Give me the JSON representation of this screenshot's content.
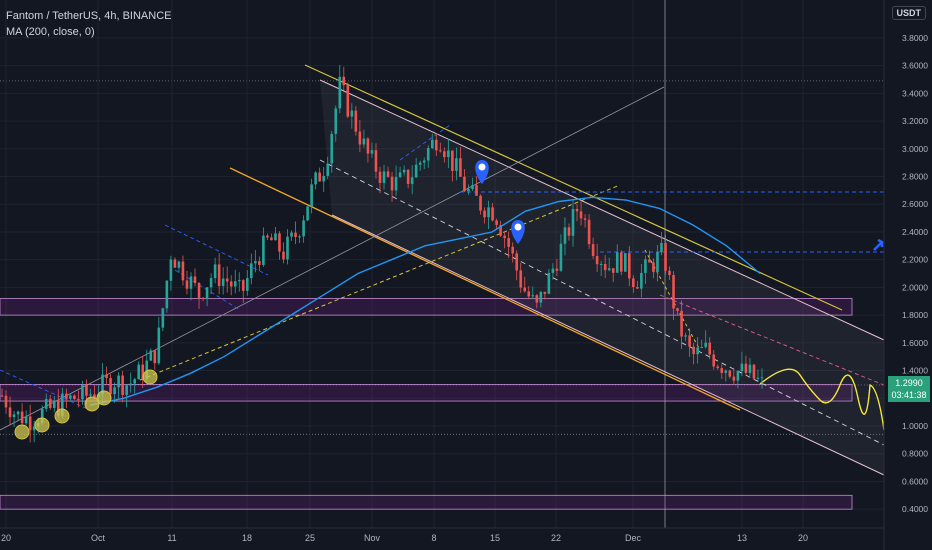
{
  "header": {
    "title": "Fantom / TetherUS, 4h, BINANCE",
    "indicator": "MA (200, close, 0)"
  },
  "currency_button": "USDT",
  "price_tag": {
    "price": "1.2990",
    "countdown": "03:41:38"
  },
  "colors": {
    "background": "#131722",
    "up": "#26a69a",
    "down": "#ef5350",
    "ma": "#2962ff",
    "channel": "#e8c0cf",
    "zone": "#9c27b0",
    "trend": "#d4c43a",
    "marker": "#2962ff"
  },
  "chart_data": {
    "type": "candlestick",
    "symbol": "FTMUSDT",
    "interval": "4h",
    "y_ticks": [
      "3.8000",
      "3.6000",
      "3.4000",
      "3.2000",
      "3.0000",
      "2.8000",
      "2.6000",
      "2.4000",
      "2.2000",
      "2.0000",
      "1.8000",
      "1.6000",
      "1.4000",
      "1.2000",
      "1.0000",
      "0.8000",
      "0.6000",
      "0.4000"
    ],
    "x_ticks": [
      "20",
      "Oct",
      "11",
      "18",
      "25",
      "Nov",
      "8",
      "15",
      "22",
      "Dec",
      "13",
      "20"
    ],
    "ylim": [
      0.35,
      3.95
    ],
    "approx_close_series": [
      1.22,
      1.08,
      1.05,
      1.1,
      1.15,
      1.2,
      1.22,
      1.28,
      1.33,
      1.3,
      1.4,
      1.55,
      2.25,
      2.1,
      1.95,
      2.1,
      2.05,
      1.95,
      2.2,
      2.35,
      2.25,
      2.4,
      2.7,
      2.9,
      3.45,
      3.2,
      2.95,
      2.8,
      2.75,
      2.8,
      2.95,
      3.1,
      2.9,
      2.7,
      2.6,
      2.55,
      2.3,
      2.0,
      1.85,
      2.1,
      2.35,
      2.6,
      2.3,
      2.15,
      2.2,
      2.05,
      2.15,
      2.25,
      1.75,
      1.5,
      1.55,
      1.45,
      1.4,
      1.38,
      1.3
    ],
    "ma_200": [
      1.15,
      1.2,
      1.28,
      1.38,
      1.5,
      1.65,
      1.8,
      1.95,
      2.1,
      2.2,
      2.3,
      2.35,
      2.4,
      2.55,
      2.62,
      2.65,
      2.63,
      2.57,
      2.45,
      2.3,
      2.1
    ],
    "zones": [
      {
        "from": 1.8,
        "to": 1.92
      },
      {
        "from": 1.18,
        "to": 1.3
      },
      {
        "from": 0.4,
        "to": 0.5
      }
    ],
    "grid": true
  }
}
